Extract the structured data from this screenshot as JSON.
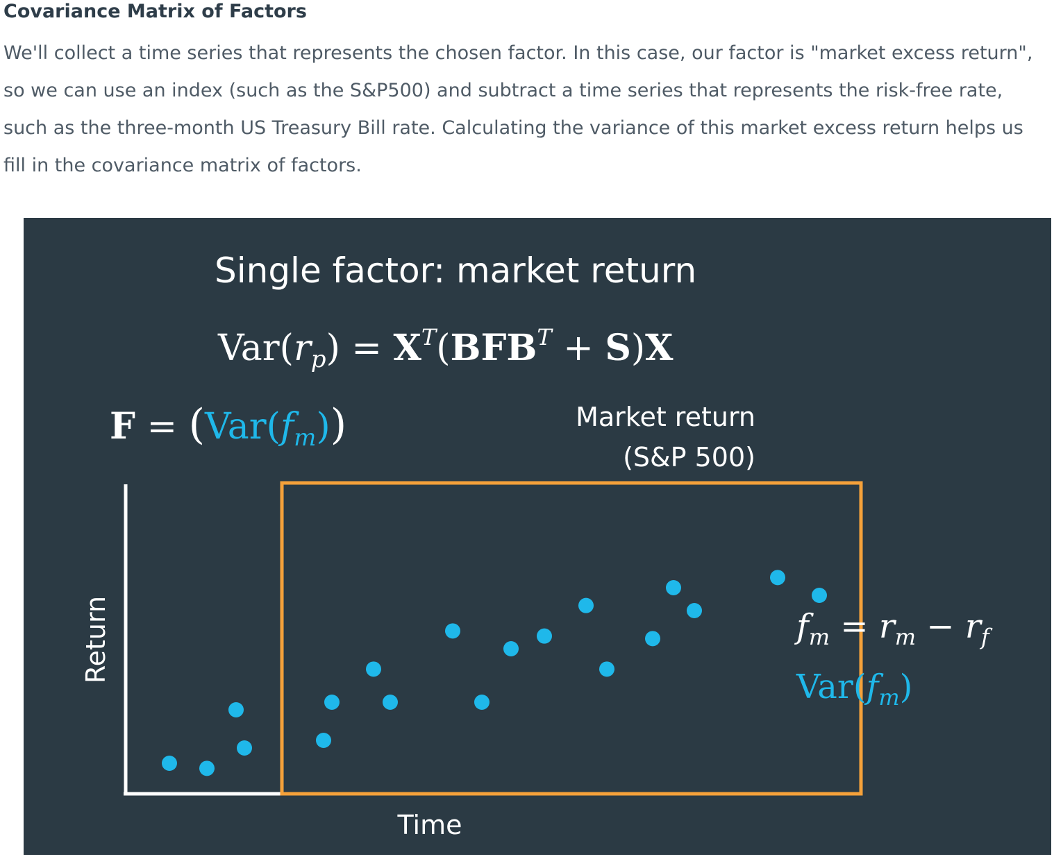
{
  "section": {
    "title": "Covariance Matrix of Factors",
    "paragraph": "We'll collect a time series that represents the chosen factor. In this case, our factor is \"market excess return\", so we can use an index (such as the S&P500) and subtract a time series that represents the risk-free rate, such as the three-month US Treasury Bill rate. Calculating the variance of this market excess return helps us fill in the covariance matrix of factors."
  },
  "figure": {
    "title": "Single factor: market return",
    "variance_formula": {
      "var": "Var",
      "open": "(",
      "r": "r",
      "p": "p",
      "close": ")",
      "equals": " = ",
      "x": "X",
      "t1": "T",
      "open2": "(",
      "bfb": "BFB",
      "t2": "T",
      "plus": " + ",
      "s": "S",
      "close2": ")",
      "x2": "X"
    },
    "f_formula": {
      "f": "F",
      "equals": " = ",
      "lhs_paren": "(",
      "var": "Var",
      "open": "(",
      "fm_f": "f",
      "fm_m": "m",
      "close": ")",
      "rhs_paren": ")"
    },
    "market_label_line1": "Market return",
    "market_label_line2": "(S&P 500)",
    "y_axis_label": "Return",
    "x_axis_label": "Time",
    "excess_formula": {
      "f": "f",
      "m": "m",
      "equals": " = ",
      "r1": "r",
      "m2": "m",
      "minus": " − ",
      "r2": "r",
      "sub_f": "f"
    },
    "var_fm": {
      "var": "Var",
      "open": "(",
      "f": "f",
      "m": "m",
      "close": ")"
    },
    "colors": {
      "background": "#2b3a44",
      "dot": "#1fb8ea",
      "highlight_box": "#f5a13a",
      "axis": "#ffffff",
      "text": "#ffffff"
    }
  },
  "chart_data": {
    "type": "scatter",
    "xlabel": "Time",
    "ylabel": "Return",
    "points": [
      {
        "x": 1.0,
        "y": 1.2
      },
      {
        "x": 1.9,
        "y": 1.0
      },
      {
        "x": 2.8,
        "y": 1.8
      },
      {
        "x": 2.6,
        "y": 3.3
      },
      {
        "x": 4.7,
        "y": 2.1
      },
      {
        "x": 4.9,
        "y": 3.6
      },
      {
        "x": 5.9,
        "y": 4.9
      },
      {
        "x": 6.3,
        "y": 3.6
      },
      {
        "x": 7.8,
        "y": 6.4
      },
      {
        "x": 8.5,
        "y": 3.6
      },
      {
        "x": 9.2,
        "y": 5.7
      },
      {
        "x": 10.0,
        "y": 6.2
      },
      {
        "x": 11.0,
        "y": 7.4
      },
      {
        "x": 11.5,
        "y": 4.9
      },
      {
        "x": 12.6,
        "y": 6.1
      },
      {
        "x": 13.1,
        "y": 8.1
      },
      {
        "x": 13.6,
        "y": 7.2
      },
      {
        "x": 15.6,
        "y": 8.5
      },
      {
        "x": 16.6,
        "y": 7.8
      }
    ],
    "xlim": [
      0,
      18
    ],
    "ylim": [
      0,
      12
    ],
    "highlight_window": {
      "x_start": 3.7,
      "x_end": 17.6
    }
  }
}
